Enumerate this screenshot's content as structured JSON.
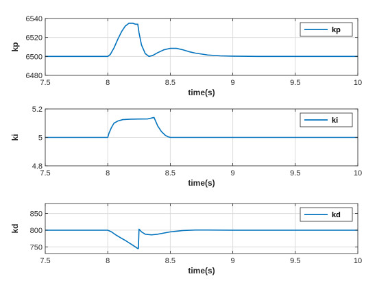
{
  "figure": {
    "xlabel": "time(s)"
  },
  "colors": {
    "line": "#0072BD",
    "axis": "#262626",
    "grid": "#dcdcdc",
    "background": "#ffffff"
  },
  "chart_data": [
    {
      "type": "line",
      "ylabel": "kp",
      "xlabel": "time(s)",
      "xlim": [
        7.5,
        10
      ],
      "ylim": [
        6480,
        6540
      ],
      "xticks": [
        "7.5",
        "8",
        "8.5",
        "9",
        "9.5",
        "10"
      ],
      "yticks": [
        "6480",
        "6500",
        "6520",
        "6540"
      ],
      "grid": true,
      "legend_placement": "top-right",
      "series": [
        {
          "name": "kp",
          "x": [
            7.5,
            8.0,
            8.02,
            8.05,
            8.08,
            8.11,
            8.14,
            8.17,
            8.2,
            8.22,
            8.24,
            8.25,
            8.27,
            8.3,
            8.33,
            8.36,
            8.4,
            8.45,
            8.5,
            8.55,
            8.6,
            8.65,
            8.7,
            8.8,
            8.9,
            9.0,
            9.2,
            10.0
          ],
          "y": [
            6500,
            6500,
            6502,
            6509,
            6518,
            6526,
            6532,
            6535,
            6535,
            6534,
            6534,
            6525,
            6512,
            6503,
            6500,
            6501,
            6504,
            6507,
            6508.5,
            6508.5,
            6507,
            6505,
            6503.5,
            6501.5,
            6500.6,
            6500.3,
            6500,
            6500
          ]
        }
      ]
    },
    {
      "type": "line",
      "ylabel": "ki",
      "xlabel": "time(s)",
      "xlim": [
        7.5,
        10
      ],
      "ylim": [
        4.8,
        5.2
      ],
      "xticks": [
        "7.5",
        "8",
        "8.5",
        "9",
        "9.5",
        "10"
      ],
      "yticks": [
        "4.8",
        "5",
        "5.2"
      ],
      "grid": true,
      "legend_placement": "top-right",
      "series": [
        {
          "name": "ki",
          "x": [
            7.5,
            8.0,
            8.01,
            8.03,
            8.05,
            8.08,
            8.12,
            8.18,
            8.25,
            8.32,
            8.37,
            8.38,
            8.4,
            8.43,
            8.46,
            8.48,
            8.5,
            10.0
          ],
          "y": [
            5.0,
            5.0,
            5.03,
            5.07,
            5.1,
            5.115,
            5.125,
            5.128,
            5.129,
            5.13,
            5.14,
            5.12,
            5.08,
            5.04,
            5.015,
            5.005,
            5.0,
            5.0
          ]
        }
      ]
    },
    {
      "type": "line",
      "ylabel": "kd",
      "xlabel": "time(s)",
      "xlim": [
        7.5,
        10
      ],
      "ylim": [
        730,
        880
      ],
      "xticks": [
        "7.5",
        "8",
        "8.5",
        "9",
        "9.5",
        "10"
      ],
      "yticks": [
        "750",
        "800",
        "850"
      ],
      "grid": true,
      "legend_placement": "top-right",
      "series": [
        {
          "name": "kd",
          "x": [
            7.5,
            8.0,
            8.03,
            8.06,
            8.1,
            8.15,
            8.2,
            8.24,
            8.245,
            8.25,
            8.27,
            8.3,
            8.35,
            8.4,
            8.5,
            8.6,
            8.7,
            8.8,
            9.0,
            10.0
          ],
          "y": [
            800,
            800,
            795,
            787,
            778,
            767,
            755,
            745,
            745,
            803,
            795,
            788,
            786,
            788,
            795,
            799,
            800.5,
            800.5,
            800,
            800
          ]
        }
      ]
    }
  ]
}
